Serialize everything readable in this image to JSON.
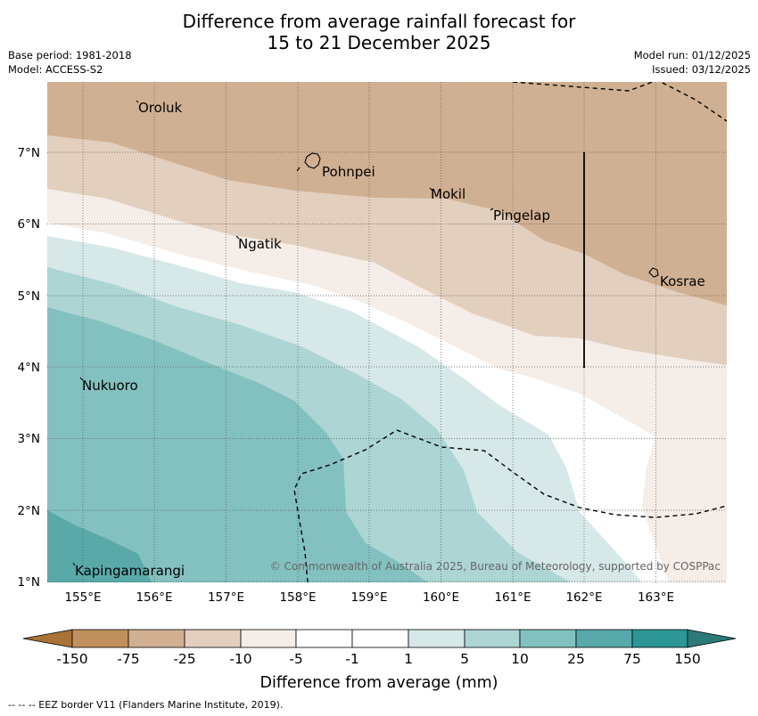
{
  "title_line1": "Difference from average rainfall forecast for",
  "title_line2": "15 to 21 December 2025",
  "base_period": "Base period: 1981-2018",
  "model": "Model: ACCESS-S2",
  "model_run": "Model run: 01/12/2025",
  "issued": "Issued: 03/12/2025",
  "places": {
    "oroluk": "Oroluk",
    "pohnpei": "Pohnpei",
    "mokil": "Mokil",
    "pingelap": "Pingelap",
    "ngatik": "Ngatik",
    "kosrae": "Kosrae",
    "nukuoro": "Nukuoro",
    "kapingamarangi": "Kapingamarangi"
  },
  "lon_ticks": [
    "155°E",
    "156°E",
    "157°E",
    "158°E",
    "159°E",
    "160°E",
    "161°E",
    "162°E",
    "163°E"
  ],
  "lat_ticks": [
    "1°N",
    "2°N",
    "3°N",
    "4°N",
    "5°N",
    "6°N",
    "7°N"
  ],
  "copyright": "© Commonwealth of Australia 2025, Bureau of Meteorology, supported by COSPPac",
  "colorbar": {
    "labels": [
      "-150",
      "-75",
      "-25",
      "-10",
      "-5",
      "-1",
      "1",
      "5",
      "10",
      "25",
      "75",
      "150"
    ],
    "colors": [
      "#ab7237",
      "#c0915e",
      "#d1b092",
      "#e3cfbe",
      "#f4ede8",
      "#ffffff",
      "#d6e8e7",
      "#acd5d4",
      "#83c1c0",
      "#58a9a9",
      "#2c9595"
    ],
    "title": "Difference from average (mm)"
  },
  "footnote": "--  --  -- EEZ border V11 (Flanders Marine Institute, 2019).",
  "colors": {
    "brown_dark": "#d0b092",
    "brown_light": "#e3cfbe",
    "brown_pale": "#f4ede8",
    "teal_pale": "#d6e8e7",
    "teal_light": "#acd5d4",
    "teal_mid": "#83c1c0",
    "teal_dark": "#5aa9a9"
  }
}
